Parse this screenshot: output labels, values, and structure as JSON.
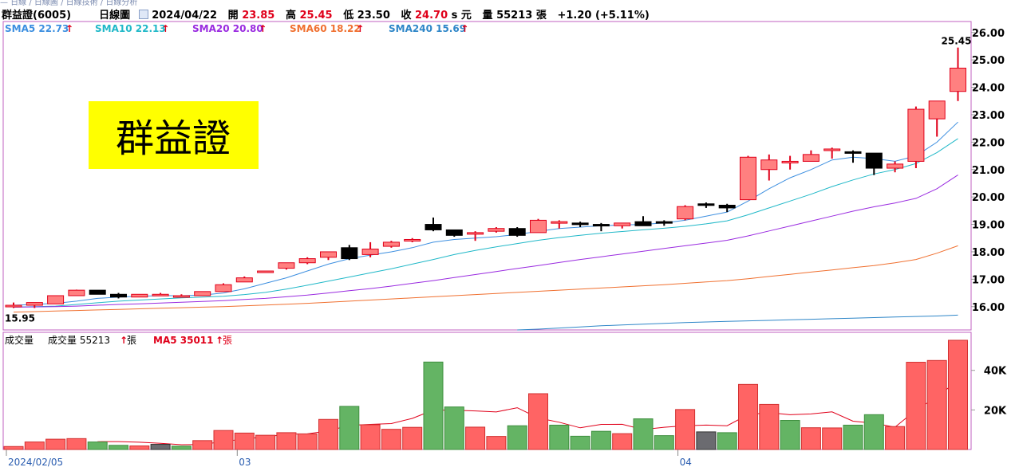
{
  "breadcrumb": "— 日線 / 日線圖 / 日線技術 / 日線分析",
  "header": {
    "stock": "群益證(6005)",
    "chart_kind": "日線圖",
    "date": "2024/04/22",
    "open_label": "開",
    "open": "23.85",
    "high_label": "高",
    "high": "25.45",
    "low_label": "低",
    "low": "23.50",
    "close_label": "收",
    "close": "24.70",
    "close_suffix": "s 元",
    "vol_label": "量",
    "volume": "55213",
    "vol_unit": "張",
    "change": "+1.20 (+5.11%)"
  },
  "legend": [
    {
      "label": "SMA5 22.73",
      "color": "#3d8fe0"
    },
    {
      "label": "SMA10 22.13",
      "color": "#20b8c8"
    },
    {
      "label": "SMA20 20.80",
      "color": "#9a2be0"
    },
    {
      "label": "SMA60 18.22",
      "color": "#f07030"
    },
    {
      "label": "SMA240 15.69",
      "color": "#2e86c8"
    }
  ],
  "title_box": "群益證",
  "volume_legend": {
    "name": "成交量",
    "vol": "成交量 55213",
    "vol_unit": "張",
    "ma": "MA5 35011",
    "ma_unit": "張",
    "ma_color": "#e0001a"
  },
  "chart_data": {
    "type": "candlestick",
    "y_ticks": [
      "16.00",
      "17.00",
      "18.00",
      "19.00",
      "20.00",
      "21.00",
      "22.00",
      "23.00",
      "24.00",
      "25.00",
      "26.00"
    ],
    "ylim": [
      15.15,
      26.4
    ],
    "volume_ticks": [
      "20K",
      "40K"
    ],
    "volume_ylim": [
      0,
      56000
    ],
    "x_labels": [
      {
        "label": "2024/02/05",
        "index": 0
      },
      {
        "label": "03",
        "index": 11
      },
      {
        "label": "04",
        "index": 32
      }
    ],
    "high_label": "25.45",
    "low_label": "15.95",
    "candles": [
      {
        "o": 16.05,
        "h": 16.15,
        "l": 15.95,
        "c": 16.05,
        "v": 1500
      },
      {
        "o": 16.05,
        "h": 16.15,
        "l": 15.95,
        "c": 16.15,
        "v": 3800
      },
      {
        "o": 16.1,
        "h": 16.4,
        "l": 16.1,
        "c": 16.4,
        "v": 5200
      },
      {
        "o": 16.4,
        "h": 16.62,
        "l": 16.4,
        "c": 16.6,
        "v": 5500
      },
      {
        "o": 16.6,
        "h": 16.6,
        "l": 16.45,
        "c": 16.45,
        "v": 3800
      },
      {
        "o": 16.45,
        "h": 16.5,
        "l": 16.3,
        "c": 16.35,
        "v": 2100
      },
      {
        "o": 16.35,
        "h": 16.45,
        "l": 16.35,
        "c": 16.45,
        "v": 1800
      },
      {
        "o": 16.45,
        "h": 16.5,
        "l": 16.4,
        "c": 16.45,
        "v": 2600
      },
      {
        "o": 16.4,
        "h": 16.45,
        "l": 16.35,
        "c": 16.4,
        "v": 1700
      },
      {
        "o": 16.4,
        "h": 16.55,
        "l": 16.4,
        "c": 16.55,
        "v": 4500
      },
      {
        "o": 16.55,
        "h": 16.85,
        "l": 16.55,
        "c": 16.8,
        "v": 9600
      },
      {
        "o": 16.9,
        "h": 17.1,
        "l": 16.9,
        "c": 17.05,
        "v": 8300
      },
      {
        "o": 17.25,
        "h": 17.3,
        "l": 17.25,
        "c": 17.3,
        "v": 7200
      },
      {
        "o": 17.4,
        "h": 17.6,
        "l": 17.35,
        "c": 17.6,
        "v": 8500
      },
      {
        "o": 17.6,
        "h": 17.8,
        "l": 17.55,
        "c": 17.75,
        "v": 7900
      },
      {
        "o": 17.8,
        "h": 18.0,
        "l": 17.7,
        "c": 18.0,
        "v": 15200
      },
      {
        "o": 18.15,
        "h": 18.25,
        "l": 17.7,
        "c": 17.75,
        "v": 21800
      },
      {
        "o": 17.9,
        "h": 18.35,
        "l": 17.8,
        "c": 18.1,
        "v": 12500
      },
      {
        "o": 18.2,
        "h": 18.4,
        "l": 18.15,
        "c": 18.35,
        "v": 10200
      },
      {
        "o": 18.4,
        "h": 18.5,
        "l": 18.35,
        "c": 18.45,
        "v": 11200
      },
      {
        "o": 19.0,
        "h": 19.25,
        "l": 18.75,
        "c": 18.8,
        "v": 44200
      },
      {
        "o": 18.8,
        "h": 18.8,
        "l": 18.55,
        "c": 18.6,
        "v": 21500
      },
      {
        "o": 18.7,
        "h": 18.75,
        "l": 18.4,
        "c": 18.7,
        "v": 11300
      },
      {
        "o": 18.75,
        "h": 18.9,
        "l": 18.7,
        "c": 18.85,
        "v": 6600
      },
      {
        "o": 18.85,
        "h": 18.9,
        "l": 18.55,
        "c": 18.6,
        "v": 12000
      },
      {
        "o": 18.7,
        "h": 19.2,
        "l": 18.7,
        "c": 19.15,
        "v": 28200
      },
      {
        "o": 19.1,
        "h": 19.15,
        "l": 18.85,
        "c": 19.1,
        "v": 12300
      },
      {
        "o": 19.05,
        "h": 19.1,
        "l": 18.9,
        "c": 19.0,
        "v": 6700
      },
      {
        "o": 19.0,
        "h": 19.05,
        "l": 18.75,
        "c": 18.95,
        "v": 9200
      },
      {
        "o": 18.95,
        "h": 19.05,
        "l": 18.85,
        "c": 19.05,
        "v": 8000
      },
      {
        "o": 19.1,
        "h": 19.3,
        "l": 18.95,
        "c": 18.95,
        "v": 15500
      },
      {
        "o": 19.1,
        "h": 19.15,
        "l": 18.95,
        "c": 19.05,
        "v": 7000
      },
      {
        "o": 19.2,
        "h": 19.7,
        "l": 19.15,
        "c": 19.65,
        "v": 20200
      },
      {
        "o": 19.75,
        "h": 19.8,
        "l": 19.6,
        "c": 19.7,
        "v": 8900
      },
      {
        "o": 19.7,
        "h": 19.75,
        "l": 19.45,
        "c": 19.6,
        "v": 8500
      },
      {
        "o": 19.9,
        "h": 21.5,
        "l": 19.9,
        "c": 21.45,
        "v": 32900
      },
      {
        "o": 21.0,
        "h": 21.55,
        "l": 20.6,
        "c": 21.35,
        "v": 22800
      },
      {
        "o": 21.3,
        "h": 21.5,
        "l": 21.0,
        "c": 21.3,
        "v": 14700
      },
      {
        "o": 21.3,
        "h": 21.7,
        "l": 21.3,
        "c": 21.55,
        "v": 11000
      },
      {
        "o": 21.75,
        "h": 21.8,
        "l": 21.4,
        "c": 21.75,
        "v": 10900
      },
      {
        "o": 21.65,
        "h": 21.7,
        "l": 21.25,
        "c": 21.6,
        "v": 12300
      },
      {
        "o": 21.6,
        "h": 21.6,
        "l": 20.8,
        "c": 21.05,
        "v": 17600
      },
      {
        "o": 21.05,
        "h": 21.3,
        "l": 20.9,
        "c": 21.2,
        "v": 11600
      },
      {
        "o": 21.3,
        "h": 23.3,
        "l": 21.05,
        "c": 23.2,
        "v": 44100
      },
      {
        "o": 22.85,
        "h": 23.5,
        "l": 22.2,
        "c": 23.5,
        "v": 45000
      },
      {
        "o": 23.85,
        "h": 25.45,
        "l": 23.5,
        "c": 24.7,
        "v": 55213
      }
    ],
    "series": [
      {
        "name": "SMA5",
        "values": [
          16.05,
          16.08,
          16.12,
          16.2,
          16.3,
          16.35,
          16.38,
          16.4,
          16.4,
          16.42,
          16.5,
          16.65,
          16.85,
          17.05,
          17.3,
          17.55,
          17.75,
          17.88,
          18.0,
          18.15,
          18.35,
          18.45,
          18.5,
          18.55,
          18.63,
          18.75,
          18.85,
          18.9,
          18.95,
          18.98,
          19.0,
          19.05,
          19.15,
          19.3,
          19.45,
          19.85,
          20.3,
          20.7,
          21.0,
          21.35,
          21.45,
          21.4,
          21.3,
          21.5,
          22.0,
          22.73
        ]
      },
      {
        "name": "SMA10",
        "values": [
          15.98,
          16.0,
          16.02,
          16.08,
          16.14,
          16.2,
          16.24,
          16.28,
          16.32,
          16.35,
          16.38,
          16.44,
          16.52,
          16.64,
          16.78,
          16.93,
          17.08,
          17.23,
          17.38,
          17.55,
          17.72,
          17.9,
          18.05,
          18.18,
          18.3,
          18.42,
          18.52,
          18.6,
          18.68,
          18.74,
          18.8,
          18.86,
          18.93,
          19.02,
          19.13,
          19.35,
          19.6,
          19.85,
          20.1,
          20.38,
          20.62,
          20.84,
          21.0,
          21.22,
          21.62,
          22.13
        ]
      },
      {
        "name": "SMA20",
        "values": [
          15.98,
          15.99,
          16.0,
          16.02,
          16.05,
          16.08,
          16.1,
          16.13,
          16.16,
          16.19,
          16.22,
          16.26,
          16.3,
          16.36,
          16.42,
          16.5,
          16.58,
          16.66,
          16.75,
          16.85,
          16.95,
          17.06,
          17.17,
          17.28,
          17.39,
          17.5,
          17.61,
          17.72,
          17.82,
          17.92,
          18.02,
          18.12,
          18.22,
          18.32,
          18.42,
          18.58,
          18.76,
          18.94,
          19.12,
          19.3,
          19.48,
          19.64,
          19.78,
          19.95,
          20.3,
          20.8
        ]
      },
      {
        "name": "SMA60",
        "values": [
          15.8,
          15.82,
          15.84,
          15.86,
          15.88,
          15.9,
          15.92,
          15.94,
          15.96,
          15.98,
          16.0,
          16.03,
          16.06,
          16.09,
          16.12,
          16.16,
          16.2,
          16.24,
          16.28,
          16.32,
          16.36,
          16.4,
          16.44,
          16.48,
          16.52,
          16.56,
          16.6,
          16.64,
          16.68,
          16.72,
          16.76,
          16.8,
          16.85,
          16.9,
          16.95,
          17.02,
          17.1,
          17.18,
          17.26,
          17.34,
          17.42,
          17.5,
          17.6,
          17.72,
          17.95,
          18.22
        ]
      },
      {
        "name": "SMA240",
        "values": [
          null,
          null,
          null,
          null,
          null,
          null,
          null,
          null,
          null,
          null,
          null,
          null,
          null,
          null,
          null,
          null,
          null,
          null,
          null,
          null,
          null,
          null,
          null,
          null,
          15.15,
          15.18,
          15.22,
          15.26,
          15.3,
          15.33,
          15.36,
          15.39,
          15.42,
          15.44,
          15.46,
          15.48,
          15.5,
          15.52,
          15.54,
          15.56,
          15.58,
          15.6,
          15.62,
          15.64,
          15.66,
          15.69
        ]
      },
      {
        "name": "MA5",
        "values": [
          null,
          null,
          null,
          null,
          3960,
          3980,
          3680,
          3160,
          2400,
          2540,
          4040,
          5300,
          6380,
          7700,
          7900,
          9420,
          12220,
          12700,
          13100,
          15720,
          19960,
          19840,
          19480,
          18960,
          21120,
          15920,
          13760,
          10960,
          12680,
          12720,
          10080,
          11240,
          11980,
          12320,
          12020,
          17600,
          18660,
          17560,
          17980,
          19000,
          14300,
          13300,
          11300,
          20000,
          26500,
          35011
        ]
      }
    ]
  }
}
